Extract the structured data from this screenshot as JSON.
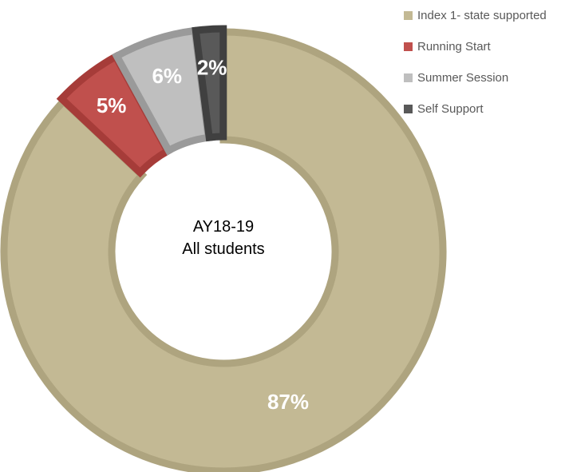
{
  "chart_data": {
    "type": "pie",
    "subtype": "doughnut",
    "title": "",
    "center_label": [
      "AY18-19",
      "All students"
    ],
    "legend_position": "top-right",
    "slices": [
      {
        "name": "Index 1- state supported",
        "value": 87,
        "label": "87%",
        "color": "#c3b994",
        "border": "#aea47f"
      },
      {
        "name": "Running Start",
        "value": 5,
        "label": "5%",
        "color": "#c0504d",
        "border": "#a63c39"
      },
      {
        "name": "Summer Session",
        "value": 6,
        "label": "6%",
        "color": "#bfbfbf",
        "border": "#9a9a9a"
      },
      {
        "name": "Self Support",
        "value": 2,
        "label": "2%",
        "color": "#595959",
        "border": "#404040"
      }
    ]
  }
}
